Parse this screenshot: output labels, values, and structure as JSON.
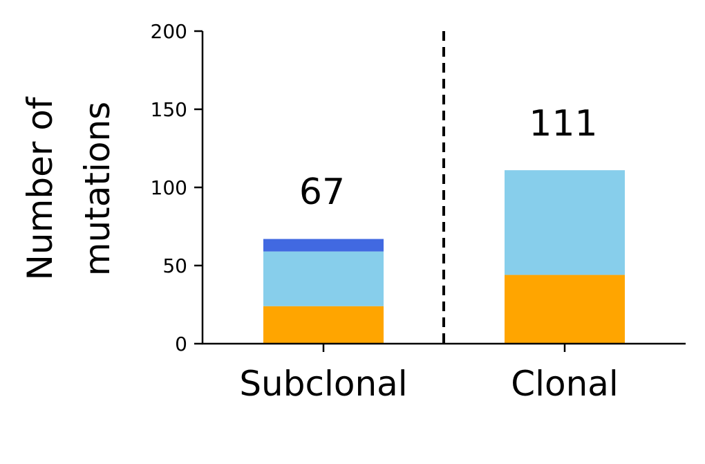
{
  "chart_data": {
    "type": "bar",
    "stacked": true,
    "categories": [
      "Subclonal",
      "Clonal"
    ],
    "ylabel_lines": [
      "Number of",
      "mutations"
    ],
    "ylim": [
      0,
      200
    ],
    "yticks": [
      "0",
      "50",
      "100",
      "150",
      "200"
    ],
    "series": [
      {
        "color": "#ffa500",
        "values": [
          24,
          44
        ]
      },
      {
        "color": "#87ceeb",
        "values": [
          35,
          67
        ]
      },
      {
        "color": "#4169e1",
        "values": [
          8,
          0
        ]
      }
    ],
    "totals": [
      "67",
      "111"
    ],
    "separator": {
      "style": "dashed",
      "between": [
        "Subclonal",
        "Clonal"
      ]
    },
    "grid": false,
    "legend": "none"
  }
}
